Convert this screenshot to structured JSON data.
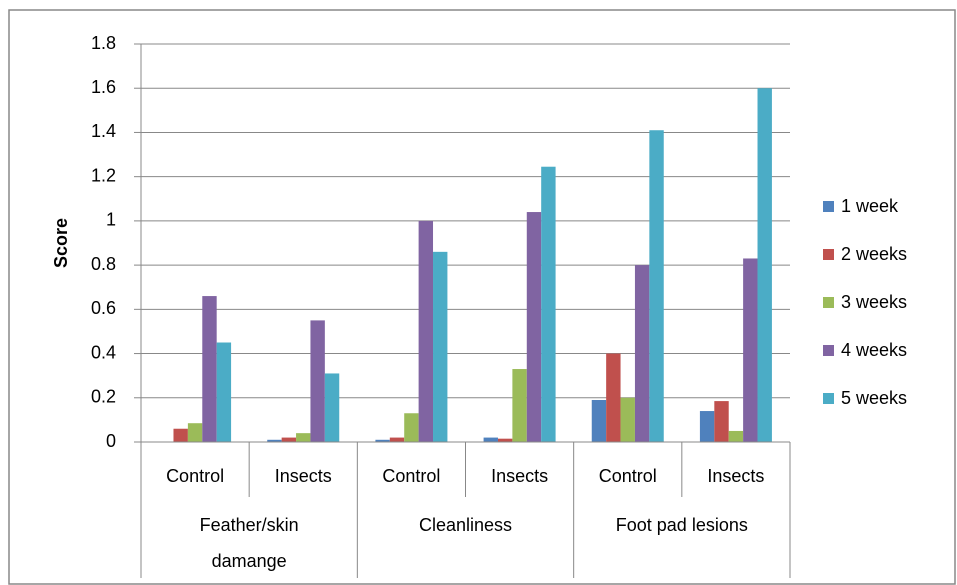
{
  "chart_data": {
    "type": "bar",
    "y_label": "Score",
    "categories": [
      "Control",
      "Insects",
      "Control",
      "Insects",
      "Control",
      "Insects"
    ],
    "groups": [
      "Feather/skin damange",
      "Cleanliness",
      "Foot pad lesions"
    ],
    "series": [
      {
        "name": "1 week",
        "color": "#4f81bd",
        "values": [
          0,
          0.01,
          0.01,
          0.02,
          0.19,
          0.14
        ]
      },
      {
        "name": "2 weeks",
        "color": "#c0504d",
        "values": [
          0.06,
          0.02,
          0.02,
          0.015,
          0.4,
          0.185
        ]
      },
      {
        "name": "3 weeks",
        "color": "#9bbb59",
        "values": [
          0.085,
          0.04,
          0.13,
          0.33,
          0.2,
          0.05
        ]
      },
      {
        "name": "4 weeks",
        "color": "#8064a2",
        "values": [
          0.66,
          0.55,
          1.0,
          1.04,
          0.8,
          0.83
        ]
      },
      {
        "name": "5 weeks",
        "color": "#4bacc6",
        "values": [
          0.45,
          0.31,
          0.86,
          1.245,
          1.41,
          1.6
        ]
      }
    ],
    "ylim": [
      0,
      1.8
    ],
    "yticks": [
      0,
      0.2,
      0.4,
      0.6,
      0.8,
      1,
      1.2,
      1.4,
      1.6,
      1.8
    ],
    "grid": true,
    "legend": "right"
  }
}
